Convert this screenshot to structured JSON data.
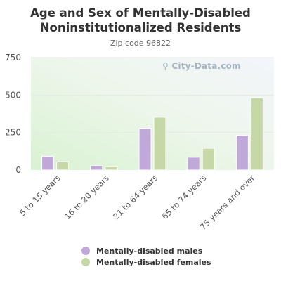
{
  "chart_data": {
    "type": "bar",
    "title": "Age and Sex of Mentally-Disabled Noninstitutionalized Residents",
    "subtitle": "Zip code 96822",
    "categories": [
      "5 to 15 years",
      "16 to 20 years",
      "21 to 64 years",
      "65 to 74 years",
      "75 years and over"
    ],
    "series": [
      {
        "name": "Mentally-disabled males",
        "color": "#c0a8d8",
        "values": [
          92,
          28,
          278,
          85,
          232
        ]
      },
      {
        "name": "Mentally-disabled females",
        "color": "#c5d8a6",
        "values": [
          55,
          22,
          352,
          145,
          482
        ]
      }
    ],
    "yticks": [
      "0",
      "250",
      "500",
      "750"
    ],
    "ylim": [
      0,
      750
    ],
    "grid": true,
    "legend_position": "bottom",
    "watermark": "City-Data.com"
  }
}
